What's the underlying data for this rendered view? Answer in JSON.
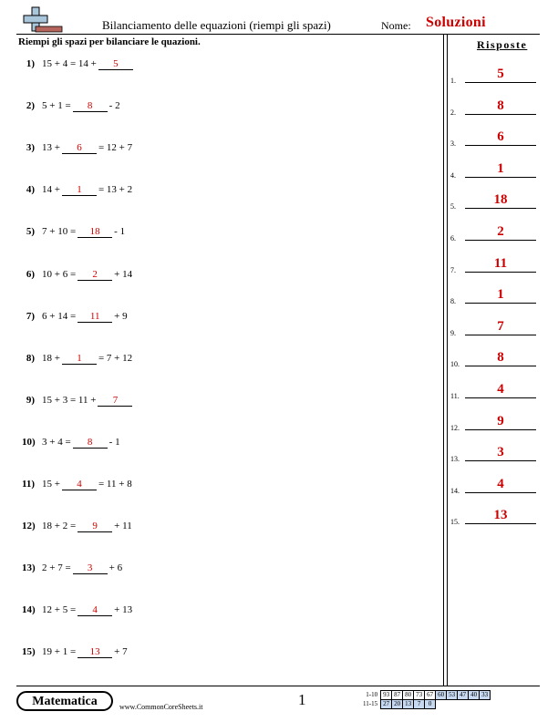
{
  "header": {
    "title": "Bilanciamento delle equazioni (riempi gli spazi)",
    "name_label": "Nome:",
    "name_value": "Soluzioni"
  },
  "instructions": "Riempi gli spazi per bilanciare le quazioni.",
  "problems": [
    {
      "num": "1)",
      "before": "15 + 4 = 14 +",
      "answer": "5",
      "after": ""
    },
    {
      "num": "2)",
      "before": "5 + 1 =",
      "answer": "8",
      "after": "- 2"
    },
    {
      "num": "3)",
      "before": "13 +",
      "answer": "6",
      "after": "= 12 + 7"
    },
    {
      "num": "4)",
      "before": "14 +",
      "answer": "1",
      "after": "= 13 + 2"
    },
    {
      "num": "5)",
      "before": "7 + 10 =",
      "answer": "18",
      "after": "- 1"
    },
    {
      "num": "6)",
      "before": "10 + 6 =",
      "answer": "2",
      "after": "+ 14"
    },
    {
      "num": "7)",
      "before": "6 + 14 =",
      "answer": "11",
      "after": "+ 9"
    },
    {
      "num": "8)",
      "before": "18 +",
      "answer": "1",
      "after": "= 7 + 12"
    },
    {
      "num": "9)",
      "before": "15 + 3 = 11 +",
      "answer": "7",
      "after": ""
    },
    {
      "num": "10)",
      "before": "3 + 4 =",
      "answer": "8",
      "after": "- 1"
    },
    {
      "num": "11)",
      "before": "15 +",
      "answer": "4",
      "after": "= 11 + 8"
    },
    {
      "num": "12)",
      "before": "18 + 2 =",
      "answer": "9",
      "after": "+ 11"
    },
    {
      "num": "13)",
      "before": "2 + 7 =",
      "answer": "3",
      "after": "+ 6"
    },
    {
      "num": "14)",
      "before": "12 + 5 =",
      "answer": "4",
      "after": "+ 13"
    },
    {
      "num": "15)",
      "before": "19 + 1 =",
      "answer": "13",
      "after": "+ 7"
    }
  ],
  "answers": {
    "heading": "Risposte",
    "items": [
      {
        "num": "1.",
        "value": "5"
      },
      {
        "num": "2.",
        "value": "8"
      },
      {
        "num": "3.",
        "value": "6"
      },
      {
        "num": "4.",
        "value": "1"
      },
      {
        "num": "5.",
        "value": "18"
      },
      {
        "num": "6.",
        "value": "2"
      },
      {
        "num": "7.",
        "value": "11"
      },
      {
        "num": "8.",
        "value": "1"
      },
      {
        "num": "9.",
        "value": "7"
      },
      {
        "num": "10.",
        "value": "8"
      },
      {
        "num": "11.",
        "value": "4"
      },
      {
        "num": "12.",
        "value": "9"
      },
      {
        "num": "13.",
        "value": "3"
      },
      {
        "num": "14.",
        "value": "4"
      },
      {
        "num": "15.",
        "value": "13"
      }
    ]
  },
  "footer": {
    "brand": "Matematica",
    "website": "www.CommonCoreSheets.it",
    "page_number": "1",
    "score_rows": [
      {
        "label": "1-10",
        "cells": [
          "93",
          "87",
          "80",
          "73",
          "67",
          "60",
          "53",
          "47",
          "40",
          "33"
        ]
      },
      {
        "label": "11-15",
        "cells": [
          "27",
          "20",
          "13",
          "7",
          "0"
        ]
      }
    ]
  },
  "colors": {
    "answer_red": "#cc0000",
    "score_highlight": "#c6d9f1",
    "logo_cross": "#a9c6da",
    "logo_bar": "#b5655b"
  },
  "icons": {
    "logo": "plus-sign-logo-icon"
  }
}
